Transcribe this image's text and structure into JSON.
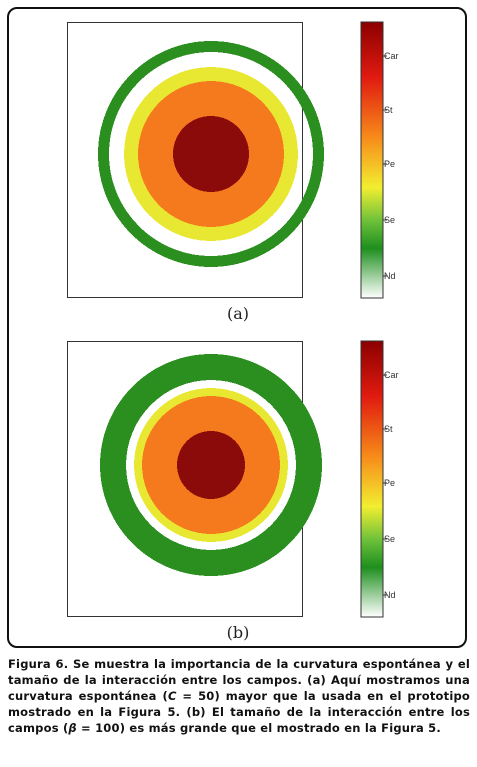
{
  "figure": {
    "panels": [
      {
        "label": "(a)",
        "colorbar_ticks": [
          "Car",
          "St",
          "Pe",
          "Se",
          "Nd"
        ],
        "rings": [
          {
            "zone": "outer",
            "color": "#2a8f1f"
          },
          {
            "zone": "yellow",
            "color": "#e8e832"
          },
          {
            "zone": "orange",
            "color": "#f57a1e"
          },
          {
            "zone": "core",
            "color": "#8b0b0b"
          }
        ]
      },
      {
        "label": "(b)",
        "colorbar_ticks": [
          "Car",
          "St",
          "Pe",
          "Se",
          "Nd"
        ],
        "rings": [
          {
            "zone": "outer",
            "color": "#2a8f1f"
          },
          {
            "zone": "yellow",
            "color": "#e8e832"
          },
          {
            "zone": "orange",
            "color": "#f57a1e"
          },
          {
            "zone": "core",
            "color": "#8b0b0b"
          }
        ]
      }
    ],
    "colorbar_colors": [
      "#8b0000",
      "#e01a10",
      "#f78c1a",
      "#f2ee30",
      "#6ec13a",
      "#1e8f1e",
      "#ffffff"
    ]
  },
  "caption": {
    "fig_label": "Figura 6.",
    "part1": " Se muestra la importancia de la curvatura espontánea y el tamaño de la interacción entre los campos. (a) Aquí mostramos una curvatura espontánea (",
    "var_c": "C",
    "part2": " = 50) mayor que la usada en el prototipo mostrado en la Figura 5. (b) El tamaño de la interacción entre los campos (",
    "var_beta": "β",
    "part3": " = 100) es más grande  que el mostrado en la Figura 5."
  }
}
